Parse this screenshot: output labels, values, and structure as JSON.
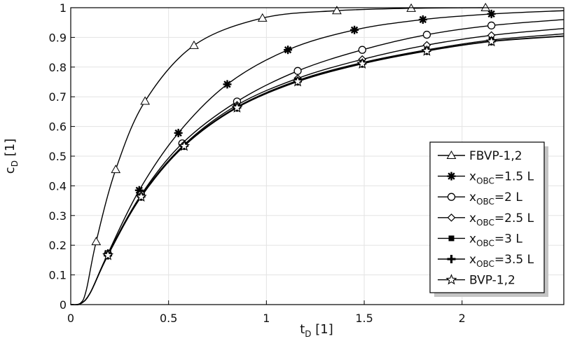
{
  "chart_data": {
    "type": "line",
    "title": "",
    "xlabel": {
      "main": "t",
      "sub": "D",
      "unit": " [1]"
    },
    "ylabel": {
      "main": "c",
      "sub": "D",
      "unit": " [1]"
    },
    "xlim": [
      0,
      2.52
    ],
    "ylim": [
      0,
      1
    ],
    "xticks": [
      0,
      0.5,
      1,
      1.5,
      2
    ],
    "xtick_labels": [
      "0",
      "0.5",
      "1",
      "1.5",
      "2"
    ],
    "yticks": [
      0,
      0.1,
      0.2,
      0.3,
      0.4,
      0.5,
      0.6,
      0.7,
      0.8,
      0.9,
      1
    ],
    "ytick_labels": [
      "0",
      "0.1",
      "0.2",
      "0.3",
      "0.4",
      "0.5",
      "0.6",
      "0.7",
      "0.8",
      "0.9",
      "1"
    ],
    "grid": true,
    "legend_position": "right",
    "series": [
      {
        "name": "FBVP-1,2",
        "legend_main": "FBVP-1,2",
        "legend_sub": "",
        "legend_tail": "",
        "marker": "triangle-open",
        "x": [
          0,
          0.05,
          0.08,
          0.13,
          0.23,
          0.38,
          0.63,
          0.98,
          1.36,
          1.74,
          2.12
        ],
        "y": [
          0,
          0.005,
          0.05,
          0.212,
          0.455,
          0.685,
          0.873,
          0.965,
          0.99,
          0.998,
          1.0
        ],
        "markers_x": [
          0.13,
          0.23,
          0.38,
          0.63,
          0.98,
          1.36,
          1.74,
          2.12
        ],
        "markers_y": [
          0.212,
          0.455,
          0.685,
          0.873,
          0.965,
          0.99,
          0.998,
          1.0
        ]
      },
      {
        "name": "xOBC=1.5 L",
        "legend_main": "x",
        "legend_sub": "OBC",
        "legend_tail": "=1.5 L",
        "marker": "asterisk",
        "x": [
          0,
          0.05,
          0.1,
          0.19,
          0.35,
          0.55,
          0.8,
          1.11,
          1.45,
          1.8,
          2.15,
          2.52
        ],
        "y": [
          0,
          0.003,
          0.04,
          0.172,
          0.385,
          0.578,
          0.742,
          0.858,
          0.925,
          0.96,
          0.979,
          0.99
        ],
        "markers_x": [
          0.19,
          0.35,
          0.55,
          0.8,
          1.11,
          1.45,
          1.8,
          2.15
        ],
        "markers_y": [
          0.172,
          0.385,
          0.578,
          0.742,
          0.858,
          0.925,
          0.96,
          0.979
        ]
      },
      {
        "name": "xOBC=2 L",
        "legend_main": "x",
        "legend_sub": "OBC",
        "legend_tail": "=2 L",
        "marker": "circle-open",
        "x": [
          0,
          0.05,
          0.1,
          0.19,
          0.36,
          0.57,
          0.85,
          1.16,
          1.49,
          1.82,
          2.15,
          2.52
        ],
        "y": [
          0,
          0.003,
          0.04,
          0.17,
          0.37,
          0.543,
          0.684,
          0.787,
          0.858,
          0.909,
          0.94,
          0.96
        ],
        "markers_x": [
          0.19,
          0.36,
          0.57,
          0.85,
          1.16,
          1.49,
          1.82,
          2.15
        ],
        "markers_y": [
          0.17,
          0.37,
          0.543,
          0.684,
          0.787,
          0.858,
          0.909,
          0.94
        ]
      },
      {
        "name": "xOBC=2.5 L",
        "legend_main": "x",
        "legend_sub": "OBC",
        "legend_tail": "=2.5 L",
        "marker": "diamond-open",
        "x": [
          0,
          0.05,
          0.1,
          0.19,
          0.36,
          0.58,
          0.85,
          1.16,
          1.49,
          1.82,
          2.15,
          2.52
        ],
        "y": [
          0,
          0.003,
          0.04,
          0.168,
          0.367,
          0.539,
          0.672,
          0.762,
          0.826,
          0.874,
          0.907,
          0.93
        ],
        "markers_x": [
          0.19,
          0.36,
          0.58,
          0.85,
          1.16,
          1.49,
          1.82,
          2.15
        ],
        "markers_y": [
          0.168,
          0.367,
          0.539,
          0.672,
          0.762,
          0.826,
          0.874,
          0.907
        ]
      },
      {
        "name": "xOBC=3 L",
        "legend_main": "x",
        "legend_sub": "OBC",
        "legend_tail": "=3 L",
        "marker": "square-filled",
        "x": [
          0,
          0.05,
          0.1,
          0.19,
          0.36,
          0.58,
          0.85,
          1.16,
          1.49,
          1.82,
          2.15,
          2.52
        ],
        "y": [
          0,
          0.003,
          0.04,
          0.167,
          0.365,
          0.536,
          0.666,
          0.755,
          0.815,
          0.858,
          0.891,
          0.912
        ],
        "markers_x": [
          0.19,
          0.36,
          0.58,
          0.85,
          1.16,
          1.49,
          1.82,
          2.15
        ],
        "markers_y": [
          0.167,
          0.365,
          0.536,
          0.666,
          0.755,
          0.815,
          0.858,
          0.891
        ]
      },
      {
        "name": "xOBC=3.5 L",
        "legend_main": "x",
        "legend_sub": "OBC",
        "legend_tail": "=3.5 L",
        "marker": "plus-bold",
        "x": [
          0,
          0.05,
          0.1,
          0.19,
          0.36,
          0.58,
          0.85,
          1.16,
          1.49,
          1.82,
          2.15,
          2.52
        ],
        "y": [
          0,
          0.003,
          0.04,
          0.166,
          0.364,
          0.535,
          0.664,
          0.752,
          0.812,
          0.855,
          0.887,
          0.905
        ],
        "markers_x": [
          0.19,
          0.36,
          0.58,
          0.85,
          1.16,
          1.49,
          1.82,
          2.15
        ],
        "markers_y": [
          0.166,
          0.364,
          0.535,
          0.664,
          0.752,
          0.812,
          0.855,
          0.887
        ]
      },
      {
        "name": "BVP-1,2",
        "legend_main": "BVP-1,2",
        "legend_sub": "",
        "legend_tail": "",
        "marker": "star-open",
        "x": [
          0,
          0.05,
          0.1,
          0.19,
          0.36,
          0.58,
          0.85,
          1.16,
          1.49,
          1.82,
          2.15,
          2.52
        ],
        "y": [
          0,
          0.003,
          0.04,
          0.166,
          0.363,
          0.534,
          0.663,
          0.751,
          0.811,
          0.854,
          0.886,
          0.904
        ],
        "markers_x": [
          0.19,
          0.36,
          0.58,
          0.85,
          1.16,
          1.49,
          1.82,
          2.15
        ],
        "markers_y": [
          0.166,
          0.363,
          0.534,
          0.663,
          0.751,
          0.811,
          0.854,
          0.886
        ]
      }
    ]
  }
}
